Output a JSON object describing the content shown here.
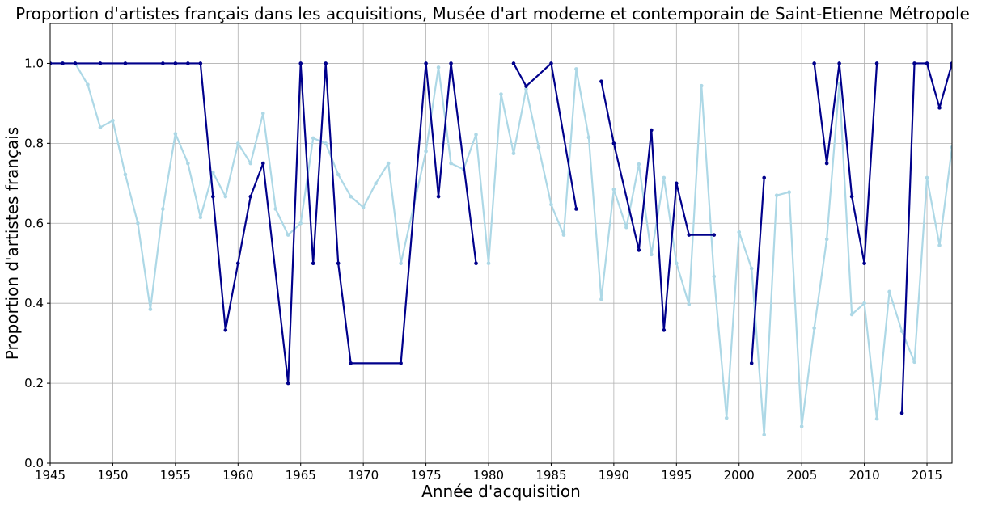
{
  "chart_data": {
    "type": "line",
    "title": "Proportion d'artistes français dans les acquisitions, Musée d'art moderne et contemporain de Saint-Etienne Métropole",
    "xlabel": "Année d'acquisition",
    "ylabel": "Proportion d'artistes français",
    "xlim": [
      1945,
      2017
    ],
    "ylim": [
      0,
      1.1
    ],
    "xticks": [
      "1945",
      "1950",
      "1955",
      "1960",
      "1965",
      "1970",
      "1975",
      "1980",
      "1985",
      "1990",
      "1995",
      "2000",
      "2005",
      "2010",
      "2015"
    ],
    "yticks": [
      "0.0",
      "0.2",
      "0.4",
      "0.6",
      "0.8",
      "1.0"
    ],
    "grid": true,
    "series": [
      {
        "color": "#add8e6",
        "points": [
          [
            1945,
            1.0
          ],
          [
            1946,
            1.0
          ],
          [
            1947,
            1.0
          ],
          [
            1948,
            0.947
          ],
          [
            1949,
            0.84
          ],
          [
            1950,
            0.857
          ],
          [
            1951,
            0.722
          ],
          [
            1952,
            0.6
          ],
          [
            1953,
            0.385
          ],
          [
            1954,
            0.636
          ],
          [
            1955,
            0.824
          ],
          [
            1956,
            0.75
          ],
          [
            1957,
            0.615
          ],
          [
            1958,
            0.727
          ],
          [
            1959,
            0.667
          ],
          [
            1960,
            0.8
          ],
          [
            1961,
            0.75
          ],
          [
            1962,
            0.875
          ],
          [
            1963,
            0.636
          ],
          [
            1964,
            0.571
          ],
          [
            1965,
            0.6
          ],
          [
            1966,
            0.813
          ],
          [
            1967,
            0.8
          ],
          [
            1968,
            0.722
          ],
          [
            1969,
            0.667
          ],
          [
            1970,
            0.64
          ],
          [
            1971,
            0.7
          ],
          [
            1972,
            0.75
          ],
          [
            1973,
            0.5
          ],
          [
            1975,
            0.78
          ],
          [
            1976,
            0.99
          ],
          [
            1977,
            0.75
          ],
          [
            1978,
            0.735
          ],
          [
            1979,
            0.822
          ],
          [
            1980,
            0.5
          ],
          [
            1981,
            0.923
          ],
          [
            1982,
            0.775
          ],
          [
            1983,
            0.936
          ],
          [
            1984,
            0.79
          ],
          [
            1985,
            0.647
          ],
          [
            1986,
            0.571
          ],
          [
            1987,
            0.986
          ],
          [
            1988,
            0.815
          ],
          [
            1989,
            0.41
          ],
          [
            1990,
            0.685
          ],
          [
            1991,
            0.59
          ],
          [
            1992,
            0.748
          ],
          [
            1993,
            0.522
          ],
          [
            1994,
            0.714
          ],
          [
            1995,
            0.5
          ],
          [
            1996,
            0.397
          ],
          [
            1997,
            0.944
          ],
          [
            1998,
            0.467
          ],
          [
            1999,
            0.113
          ],
          [
            2000,
            0.578
          ],
          [
            2001,
            0.487
          ],
          [
            2002,
            0.071
          ],
          [
            2003,
            0.67
          ],
          [
            2004,
            0.678
          ],
          [
            2005,
            0.092
          ],
          [
            2006,
            0.338
          ],
          [
            2007,
            0.56
          ],
          [
            2008,
            0.95
          ],
          [
            2009,
            0.372
          ],
          [
            2010,
            0.4
          ],
          [
            2011,
            0.111
          ],
          [
            2012,
            0.429
          ],
          [
            2013,
            0.33
          ],
          [
            2014,
            0.253
          ],
          [
            2015,
            0.714
          ],
          [
            2016,
            0.545
          ],
          [
            2017,
            0.79
          ]
        ]
      },
      {
        "color": "#00008b",
        "points": [
          [
            1945,
            1.0
          ],
          [
            1946,
            1.0
          ],
          [
            1947,
            1.0
          ],
          [
            1949,
            1.0
          ],
          [
            1951,
            1.0
          ],
          [
            1954,
            1.0
          ],
          [
            1955,
            1.0
          ],
          [
            1956,
            1.0
          ],
          [
            1957,
            1.0
          ],
          [
            1958,
            0.667
          ],
          [
            1959,
            0.333
          ],
          [
            1960,
            0.5
          ],
          [
            1961,
            0.667
          ],
          [
            1962,
            0.75
          ],
          [
            1964,
            0.2
          ],
          [
            1965,
            1.0
          ],
          [
            1966,
            0.5
          ],
          [
            1967,
            1.0
          ],
          [
            1968,
            0.5
          ],
          [
            1969,
            0.25
          ],
          [
            1973,
            0.25
          ],
          [
            1975,
            1.0
          ],
          [
            1976,
            0.667
          ],
          [
            1977,
            1.0
          ],
          [
            1979,
            0.5
          ],
          null,
          [
            1982,
            1.0
          ],
          [
            1983,
            0.943
          ],
          [
            1985,
            1.0
          ],
          [
            1987,
            0.636
          ],
          null,
          [
            1989,
            0.955
          ],
          [
            1990,
            0.8
          ],
          [
            1992,
            0.533
          ],
          [
            1993,
            0.833
          ],
          [
            1994,
            0.333
          ],
          [
            1995,
            0.7
          ],
          [
            1996,
            0.571
          ],
          [
            1998,
            0.571
          ],
          null,
          [
            2001,
            0.25
          ],
          [
            2002,
            0.714
          ],
          null,
          [
            2006,
            1.0
          ],
          [
            2007,
            0.75
          ],
          [
            2008,
            1.0
          ],
          [
            2009,
            0.667
          ],
          [
            2010,
            0.5
          ],
          [
            2011,
            1.0
          ],
          null,
          [
            2013,
            0.125
          ],
          [
            2014,
            1.0
          ],
          [
            2015,
            1.0
          ],
          [
            2016,
            0.889
          ],
          [
            2017,
            1.0
          ]
        ]
      }
    ]
  }
}
